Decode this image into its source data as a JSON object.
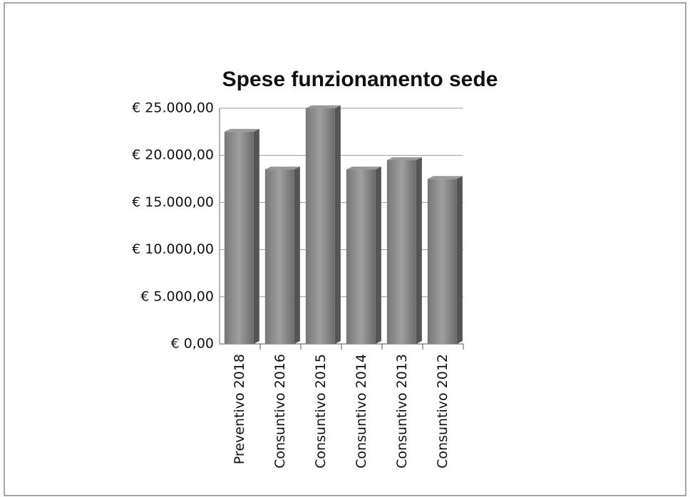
{
  "chart_data": {
    "type": "bar",
    "title": "Spese funzionamento sede",
    "categories": [
      "Preventivo 2018",
      "Consuntivo 2016",
      "Consuntivo 2015",
      "Consuntivo 2014",
      "Consuntivo 2013",
      "Consuntivo 2012"
    ],
    "values": [
      22500,
      18500,
      25000,
      18500,
      19500,
      17500
    ],
    "color": "#8a8a8a",
    "ylim": [
      0,
      25000
    ],
    "yticks": [
      {
        "value": 0,
        "label": "€ 0,00"
      },
      {
        "value": 5000,
        "label": "€ 5.000,00"
      },
      {
        "value": 10000,
        "label": "€ 10.000,00"
      },
      {
        "value": 15000,
        "label": "€ 15.000,00"
      },
      {
        "value": 20000,
        "label": "€ 20.000,00"
      },
      {
        "value": 25000,
        "label": "€ 25.000,00"
      }
    ],
    "grid": true
  }
}
